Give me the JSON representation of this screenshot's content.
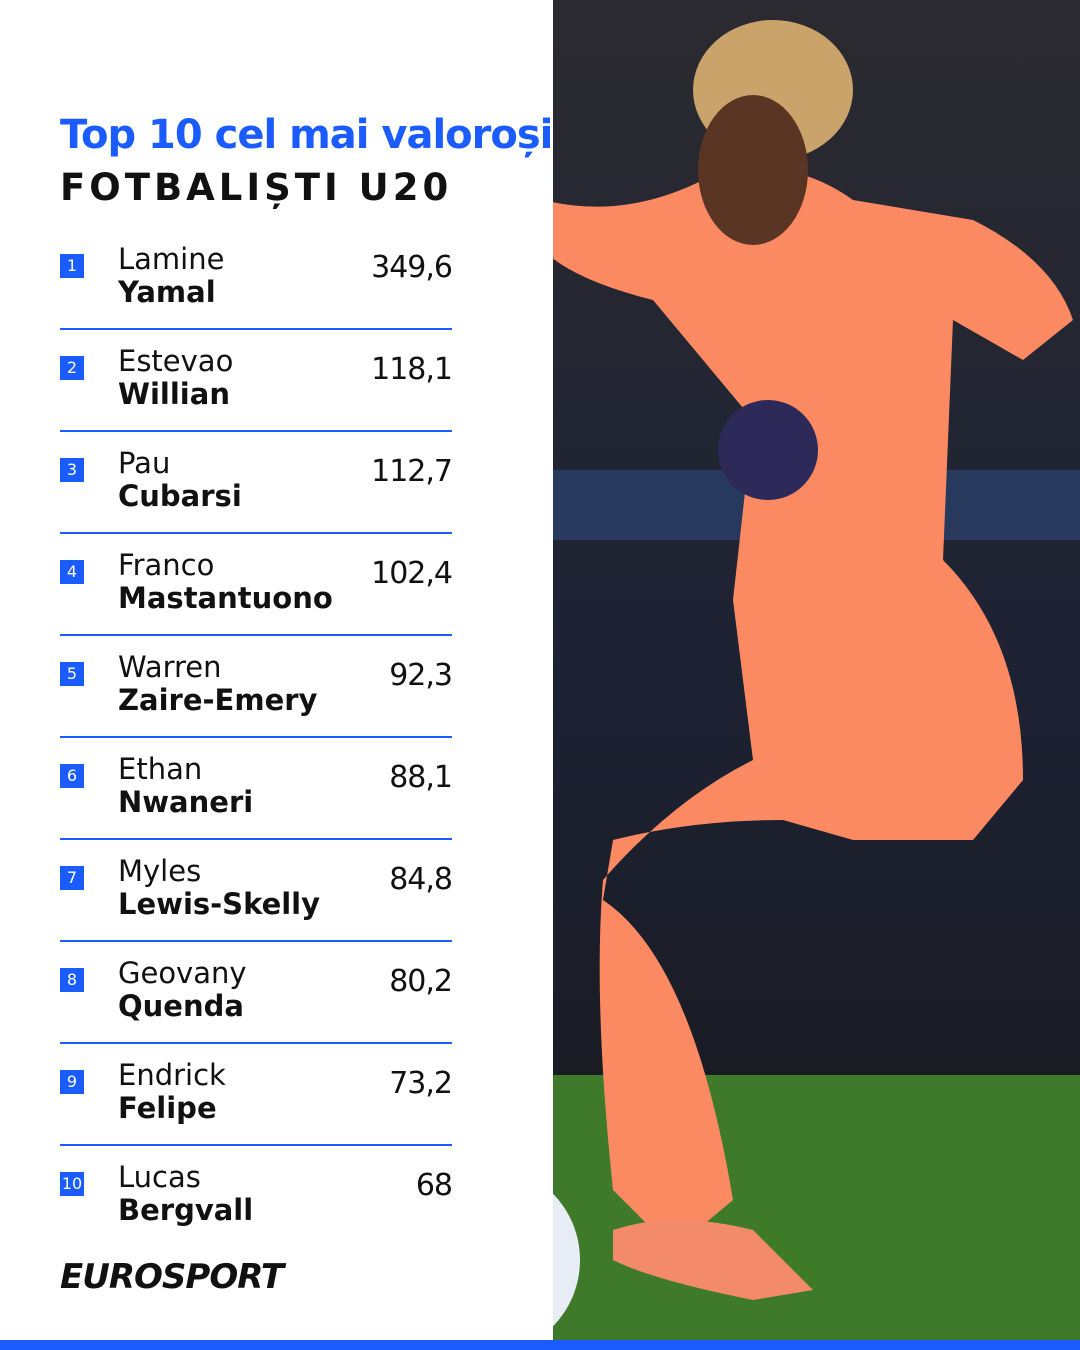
{
  "header": {
    "title": "Top 10 cel mai valoroși",
    "subtitle": "FOTBALIȘTI U20"
  },
  "list": [
    {
      "rank": 1,
      "first": "Lamine",
      "last": "Yamal",
      "value": "349,6"
    },
    {
      "rank": 2,
      "first": "Estevao",
      "last": "Willian",
      "value": "118,1"
    },
    {
      "rank": 3,
      "first": "Pau",
      "last": "Cubarsi",
      "value": "112,7"
    },
    {
      "rank": 4,
      "first": "Franco",
      "last": "Mastantuono",
      "value": "102,4"
    },
    {
      "rank": 5,
      "first": "Warren",
      "last": "Zaire-Emery",
      "value": "92,3"
    },
    {
      "rank": 6,
      "first": "Ethan",
      "last": "Nwaneri",
      "value": "88,1"
    },
    {
      "rank": 7,
      "first": "Myles",
      "last": "Lewis-Skelly",
      "value": "84,8"
    },
    {
      "rank": 8,
      "first": "Geovany",
      "last": "Quenda",
      "value": "80,2"
    },
    {
      "rank": 9,
      "first": "Endrick",
      "last": "Felipe",
      "value": "73,2"
    },
    {
      "rank": 10,
      "first": "Lucas",
      "last": "Bergvall",
      "value": "68"
    }
  ],
  "footer": {
    "logo": "EUROSPORT"
  }
}
